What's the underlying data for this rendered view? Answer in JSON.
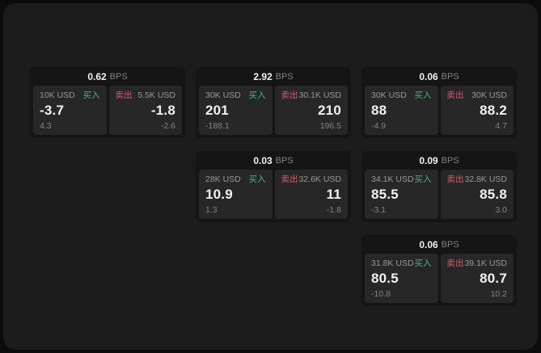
{
  "theme": {
    "page_bg": "#0c0c0c",
    "panel_bg": "#1c1c1c",
    "card_bg": "#151515",
    "cell_bg": "#272727",
    "text_primary": "#f2f2f2",
    "text_muted": "#989898",
    "text_dim": "#828282",
    "buy_green": "#43b878",
    "sell_red": "#da5b6b"
  },
  "labels": {
    "bps": "BPS",
    "buy": "买入",
    "sell": "卖出"
  },
  "cards": [
    {
      "bps": "0.62",
      "row": 1,
      "col": 1,
      "buy": {
        "amount": "10K USD",
        "value": "-3.7",
        "delta": "4.3"
      },
      "sell": {
        "amount": "5.5K USD",
        "value": "-1.8",
        "delta": "-2.6"
      }
    },
    {
      "bps": "2.92",
      "row": 1,
      "col": 2,
      "buy": {
        "amount": "30K USD",
        "value": "201",
        "delta": "-188.1"
      },
      "sell": {
        "amount": "30.1K USD",
        "value": "210",
        "delta": "196.5"
      }
    },
    {
      "bps": "0.06",
      "row": 1,
      "col": 3,
      "buy": {
        "amount": "30K USD",
        "value": "88",
        "delta": "-4.9"
      },
      "sell": {
        "amount": "30K USD",
        "value": "88.2",
        "delta": "4.7"
      }
    },
    {
      "bps": "0.03",
      "row": 2,
      "col": 2,
      "buy": {
        "amount": "28K USD",
        "value": "10.9",
        "delta": "1.3"
      },
      "sell": {
        "amount": "32.6K USD",
        "value": "11",
        "delta": "-1.8"
      }
    },
    {
      "bps": "0.09",
      "row": 2,
      "col": 3,
      "buy": {
        "amount": "34.1K USD",
        "value": "85.5",
        "delta": "-3.1"
      },
      "sell": {
        "amount": "32.8K USD",
        "value": "85.8",
        "delta": "3.0"
      }
    },
    {
      "bps": "0.06",
      "row": 3,
      "col": 3,
      "buy": {
        "amount": "31.8K USD",
        "value": "80.5",
        "delta": "-10.8"
      },
      "sell": {
        "amount": "39.1K USD",
        "value": "80.7",
        "delta": "10.2"
      }
    }
  ]
}
